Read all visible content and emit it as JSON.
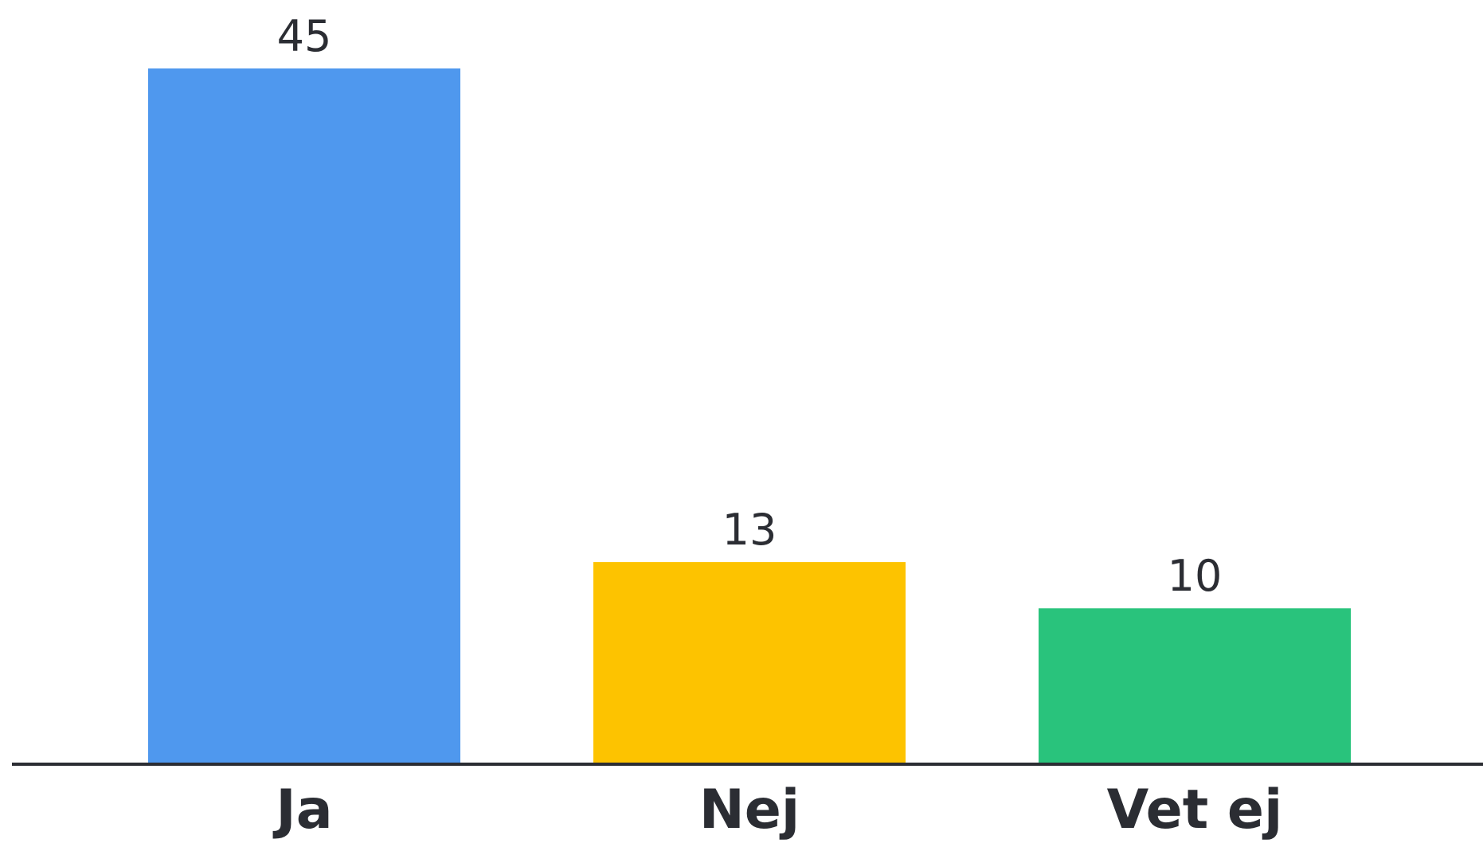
{
  "chart_data": {
    "type": "bar",
    "categories": [
      "Ja",
      "Nej",
      "Vet ej"
    ],
    "values": [
      45,
      13,
      10
    ],
    "value_labels": [
      "45",
      "13",
      "10"
    ],
    "colors": [
      "#4f98ee",
      "#fdc300",
      "#29c37c"
    ],
    "axis_color": "#2b2d33",
    "text_color": "#2b2d33",
    "title": "",
    "xlabel": "",
    "ylabel": "",
    "ylim": [
      0,
      45
    ],
    "grid": false,
    "legend": "none"
  }
}
